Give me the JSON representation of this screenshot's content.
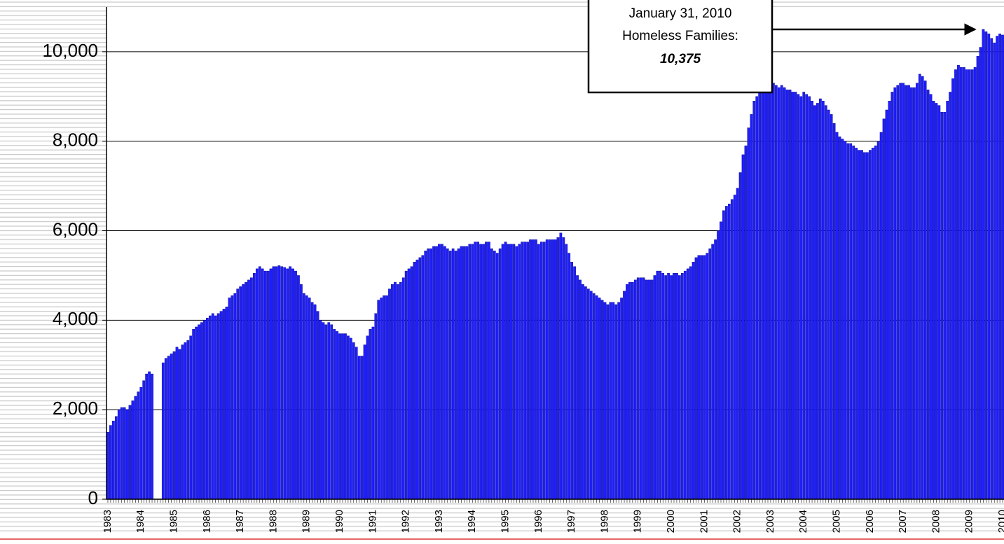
{
  "chart_data": {
    "type": "bar",
    "annotation": [
      "January 31, 2010",
      "Homeless Families:",
      "10,375"
    ],
    "categories": [
      "1983",
      null,
      null,
      null,
      null,
      null,
      null,
      null,
      null,
      null,
      null,
      null,
      "1984",
      null,
      null,
      null,
      null,
      null,
      null,
      null,
      null,
      null,
      null,
      null,
      "1985",
      null,
      null,
      null,
      null,
      null,
      null,
      null,
      null,
      null,
      null,
      null,
      "1986",
      null,
      null,
      null,
      null,
      null,
      null,
      null,
      null,
      null,
      null,
      null,
      "1987",
      null,
      null,
      null,
      null,
      null,
      null,
      null,
      null,
      null,
      null,
      null,
      "1988",
      null,
      null,
      null,
      null,
      null,
      null,
      null,
      null,
      null,
      null,
      null,
      "1989",
      null,
      null,
      null,
      null,
      null,
      null,
      null,
      null,
      null,
      null,
      null,
      "1990",
      null,
      null,
      null,
      null,
      null,
      null,
      null,
      null,
      null,
      null,
      null,
      "1991",
      null,
      null,
      null,
      null,
      null,
      null,
      null,
      null,
      null,
      null,
      null,
      "1992",
      null,
      null,
      null,
      null,
      null,
      null,
      null,
      null,
      null,
      null,
      null,
      "1993",
      null,
      null,
      null,
      null,
      null,
      null,
      null,
      null,
      null,
      null,
      null,
      "1994",
      null,
      null,
      null,
      null,
      null,
      null,
      null,
      null,
      null,
      null,
      null,
      "1995",
      null,
      null,
      null,
      null,
      null,
      null,
      null,
      null,
      null,
      null,
      null,
      "1996",
      null,
      null,
      null,
      null,
      null,
      null,
      null,
      null,
      null,
      null,
      null,
      "1997",
      null,
      null,
      null,
      null,
      null,
      null,
      null,
      null,
      null,
      null,
      null,
      "1998",
      null,
      null,
      null,
      null,
      null,
      null,
      null,
      null,
      null,
      null,
      null,
      "1999",
      null,
      null,
      null,
      null,
      null,
      null,
      null,
      null,
      null,
      null,
      null,
      "2000",
      null,
      null,
      null,
      null,
      null,
      null,
      null,
      null,
      null,
      null,
      null,
      "2001",
      null,
      null,
      null,
      null,
      null,
      null,
      null,
      null,
      null,
      null,
      null,
      "2002",
      null,
      null,
      null,
      null,
      null,
      null,
      null,
      null,
      null,
      null,
      null,
      "2003",
      null,
      null,
      null,
      null,
      null,
      null,
      null,
      null,
      null,
      null,
      null,
      "2004",
      null,
      null,
      null,
      null,
      null,
      null,
      null,
      null,
      null,
      null,
      null,
      "2005",
      null,
      null,
      null,
      null,
      null,
      null,
      null,
      null,
      null,
      null,
      null,
      "2006",
      null,
      null,
      null,
      null,
      null,
      null,
      null,
      null,
      null,
      null,
      null,
      "2007",
      null,
      null,
      null,
      null,
      null,
      null,
      null,
      null,
      null,
      null,
      null,
      "2008",
      null,
      null,
      null,
      null,
      null,
      null,
      null,
      null,
      null,
      null,
      null,
      "2009",
      null,
      null,
      null,
      null,
      null,
      null,
      null,
      null,
      null,
      null,
      null,
      "2010"
    ],
    "values": [
      1500,
      1650,
      1750,
      1850,
      2000,
      2050,
      2050,
      2000,
      2100,
      2200,
      2300,
      2400,
      2500,
      2650,
      2800,
      2850,
      2800,
      null,
      null,
      null,
      3050,
      3150,
      3200,
      3250,
      3300,
      3400,
      3350,
      3450,
      3500,
      3550,
      3650,
      3800,
      3850,
      3900,
      3950,
      4000,
      4050,
      4100,
      4150,
      4100,
      4150,
      4200,
      4250,
      4300,
      4500,
      4550,
      4600,
      4700,
      4750,
      4800,
      4850,
      4900,
      4950,
      5050,
      5150,
      5200,
      5150,
      5100,
      5100,
      5150,
      5200,
      5200,
      5220,
      5200,
      5180,
      5150,
      5200,
      5150,
      5100,
      5000,
      4800,
      4600,
      4550,
      4500,
      4400,
      4350,
      4200,
      4000,
      3950,
      3900,
      3950,
      3900,
      3800,
      3750,
      3700,
      3700,
      3700,
      3650,
      3600,
      3500,
      3400,
      3200,
      3200,
      3450,
      3650,
      3800,
      3850,
      4150,
      4450,
      4500,
      4550,
      4550,
      4700,
      4800,
      4850,
      4800,
      4850,
      4950,
      5100,
      5150,
      5200,
      5300,
      5350,
      5400,
      5450,
      5550,
      5600,
      5600,
      5650,
      5650,
      5700,
      5700,
      5650,
      5600,
      5550,
      5600,
      5550,
      5600,
      5650,
      5650,
      5650,
      5700,
      5700,
      5750,
      5750,
      5700,
      5700,
      5750,
      5750,
      5600,
      5550,
      5500,
      5600,
      5700,
      5750,
      5700,
      5700,
      5700,
      5650,
      5700,
      5750,
      5750,
      5750,
      5800,
      5800,
      5800,
      5700,
      5750,
      5750,
      5800,
      5800,
      5800,
      5800,
      5850,
      5950,
      5850,
      5700,
      5500,
      5300,
      5200,
      5000,
      4900,
      4800,
      4750,
      4700,
      4650,
      4600,
      4550,
      4500,
      4450,
      4400,
      4350,
      4400,
      4400,
      4350,
      4400,
      4500,
      4650,
      4800,
      4850,
      4850,
      4900,
      4950,
      4950,
      4950,
      4900,
      4900,
      4900,
      5000,
      5100,
      5100,
      5050,
      5000,
      5050,
      5000,
      5050,
      5050,
      5000,
      5050,
      5100,
      5150,
      5200,
      5300,
      5400,
      5450,
      5450,
      5450,
      5500,
      5600,
      5700,
      5800,
      6000,
      6200,
      6450,
      6550,
      6600,
      6700,
      6800,
      6950,
      7300,
      7700,
      7900,
      8300,
      8600,
      8900,
      9000,
      9100,
      9200,
      9250,
      9250,
      9300,
      9300,
      9250,
      9200,
      9250,
      9200,
      9150,
      9150,
      9100,
      9100,
      9050,
      9000,
      9100,
      9050,
      9000,
      8900,
      8800,
      8850,
      8950,
      8900,
      8800,
      8700,
      8600,
      8400,
      8200,
      8100,
      8050,
      8000,
      7950,
      7950,
      7900,
      7850,
      7800,
      7800,
      7750,
      7750,
      7800,
      7850,
      7900,
      8000,
      8200,
      8500,
      8700,
      8900,
      9100,
      9200,
      9250,
      9300,
      9300,
      9250,
      9250,
      9200,
      9200,
      9300,
      9500,
      9450,
      9350,
      9150,
      9050,
      8900,
      8850,
      8800,
      8650,
      8650,
      8900,
      9100,
      9400,
      9600,
      9700,
      9650,
      9650,
      9600,
      9600,
      9600,
      9650,
      9900,
      10100,
      10500,
      10450,
      10400,
      10300,
      10200,
      10350,
      10400,
      10375
    ],
    "color": "#1f1fff",
    "ylim": [
      0,
      11000
    ],
    "yticks": [
      0,
      {
        "value": 2000,
        "label": "2,000"
      },
      {
        "value": 4000,
        "label": "4,000"
      },
      {
        "value": 6000,
        "label": "6,000"
      },
      {
        "value": 8000,
        "label": "8,000"
      },
      {
        "value": 10000,
        "label": "10,000"
      }
    ],
    "grid": true
  }
}
